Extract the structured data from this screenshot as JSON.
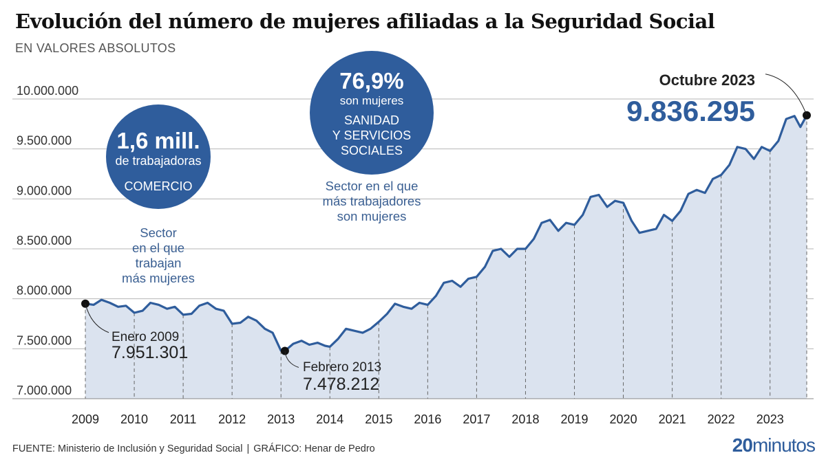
{
  "title": "Evolución del número de mujeres afiliadas a la Seguridad Social",
  "subtitle": "EN VALORES ABSOLUTOS",
  "footer": {
    "source": "FUENTE: Ministerio de Inclusión y Seguridad Social",
    "separator": "|",
    "credit": "GRÁFICO: Henar de Pedro"
  },
  "logo": {
    "number": "20",
    "word": "minutos"
  },
  "colors": {
    "line": "#2f5d9c",
    "area": "#dbe3ef",
    "circle": "#2f5d9c",
    "note": "#3a5f92",
    "grid": "#b5b5b5"
  },
  "callouts": {
    "comercio": {
      "big": "1,6 mill.",
      "sub": "de trabajadoras",
      "label": "COMERCIO",
      "note": [
        "Sector",
        "en el que",
        "trabajan",
        "más mujeres"
      ]
    },
    "sanidad": {
      "big": "76,9%",
      "sub": "son mujeres",
      "label": [
        "SANIDAD",
        "Y SERVICIOS",
        "SOCIALES"
      ],
      "note": [
        "Sector en el que",
        "más trabajadores",
        "son mujeres"
      ]
    }
  },
  "chart_data": {
    "type": "line",
    "title": "Evolución del número de mujeres afiliadas a la Seguridad Social",
    "subtitle": "EN VALORES ABSOLUTOS",
    "ylim": [
      7000000,
      10000000
    ],
    "yticks": [
      7000000,
      7500000,
      8000000,
      8500000,
      9000000,
      9500000,
      10000000
    ],
    "ytick_labels": [
      "7.000.000",
      "7.500.000",
      "8.000.000",
      "8.500.000",
      "9.000.000",
      "9.500.000",
      "10.000.000"
    ],
    "xlim": [
      2009.0,
      2023.75
    ],
    "xticks": [
      2009,
      2010,
      2011,
      2012,
      2013,
      2014,
      2015,
      2016,
      2017,
      2018,
      2019,
      2020,
      2021,
      2022,
      2023
    ],
    "grid": true,
    "series": [
      {
        "points": [
          [
            2009.0,
            7951301
          ],
          [
            2009.17,
            7940000
          ],
          [
            2009.33,
            7990000
          ],
          [
            2009.5,
            7960000
          ],
          [
            2009.67,
            7920000
          ],
          [
            2009.83,
            7930000
          ],
          [
            2010.0,
            7860000
          ],
          [
            2010.17,
            7880000
          ],
          [
            2010.33,
            7960000
          ],
          [
            2010.5,
            7940000
          ],
          [
            2010.67,
            7900000
          ],
          [
            2010.83,
            7920000
          ],
          [
            2011.0,
            7840000
          ],
          [
            2011.17,
            7850000
          ],
          [
            2011.33,
            7930000
          ],
          [
            2011.5,
            7960000
          ],
          [
            2011.67,
            7900000
          ],
          [
            2011.83,
            7880000
          ],
          [
            2012.0,
            7750000
          ],
          [
            2012.17,
            7760000
          ],
          [
            2012.33,
            7820000
          ],
          [
            2012.5,
            7780000
          ],
          [
            2012.67,
            7700000
          ],
          [
            2012.83,
            7660000
          ],
          [
            2013.0,
            7480000
          ],
          [
            2013.08,
            7478212
          ],
          [
            2013.25,
            7550000
          ],
          [
            2013.42,
            7580000
          ],
          [
            2013.58,
            7540000
          ],
          [
            2013.75,
            7560000
          ],
          [
            2013.9,
            7530000
          ],
          [
            2014.0,
            7520000
          ],
          [
            2014.17,
            7600000
          ],
          [
            2014.33,
            7700000
          ],
          [
            2014.5,
            7680000
          ],
          [
            2014.67,
            7660000
          ],
          [
            2014.83,
            7700000
          ],
          [
            2015.0,
            7770000
          ],
          [
            2015.17,
            7850000
          ],
          [
            2015.33,
            7950000
          ],
          [
            2015.5,
            7920000
          ],
          [
            2015.67,
            7900000
          ],
          [
            2015.83,
            7960000
          ],
          [
            2016.0,
            7940000
          ],
          [
            2016.17,
            8030000
          ],
          [
            2016.33,
            8160000
          ],
          [
            2016.5,
            8180000
          ],
          [
            2016.67,
            8120000
          ],
          [
            2016.83,
            8200000
          ],
          [
            2017.0,
            8220000
          ],
          [
            2017.17,
            8320000
          ],
          [
            2017.33,
            8480000
          ],
          [
            2017.5,
            8500000
          ],
          [
            2017.67,
            8420000
          ],
          [
            2017.83,
            8500000
          ],
          [
            2018.0,
            8500000
          ],
          [
            2018.17,
            8600000
          ],
          [
            2018.33,
            8760000
          ],
          [
            2018.5,
            8790000
          ],
          [
            2018.67,
            8680000
          ],
          [
            2018.83,
            8760000
          ],
          [
            2019.0,
            8740000
          ],
          [
            2019.17,
            8840000
          ],
          [
            2019.33,
            9020000
          ],
          [
            2019.5,
            9040000
          ],
          [
            2019.67,
            8920000
          ],
          [
            2019.83,
            8980000
          ],
          [
            2020.0,
            8960000
          ],
          [
            2020.17,
            8780000
          ],
          [
            2020.33,
            8660000
          ],
          [
            2020.5,
            8680000
          ],
          [
            2020.67,
            8700000
          ],
          [
            2020.83,
            8840000
          ],
          [
            2021.0,
            8780000
          ],
          [
            2021.17,
            8880000
          ],
          [
            2021.33,
            9050000
          ],
          [
            2021.5,
            9090000
          ],
          [
            2021.67,
            9060000
          ],
          [
            2021.83,
            9200000
          ],
          [
            2022.0,
            9240000
          ],
          [
            2022.17,
            9340000
          ],
          [
            2022.33,
            9520000
          ],
          [
            2022.5,
            9500000
          ],
          [
            2022.67,
            9400000
          ],
          [
            2022.83,
            9520000
          ],
          [
            2023.0,
            9480000
          ],
          [
            2023.17,
            9580000
          ],
          [
            2023.33,
            9800000
          ],
          [
            2023.5,
            9830000
          ],
          [
            2023.62,
            9720000
          ],
          [
            2023.75,
            9836295
          ]
        ]
      }
    ],
    "annotations": [
      {
        "x": 2009.0,
        "y": 7951301,
        "label": "Enero 2009",
        "value": "7.951.301"
      },
      {
        "x": 2013.08,
        "y": 7478212,
        "label": "Febrero 2013",
        "value": "7.478.212"
      },
      {
        "x": 2023.75,
        "y": 9836295,
        "label": "Octubre 2023",
        "value": "9.836.295"
      }
    ]
  }
}
